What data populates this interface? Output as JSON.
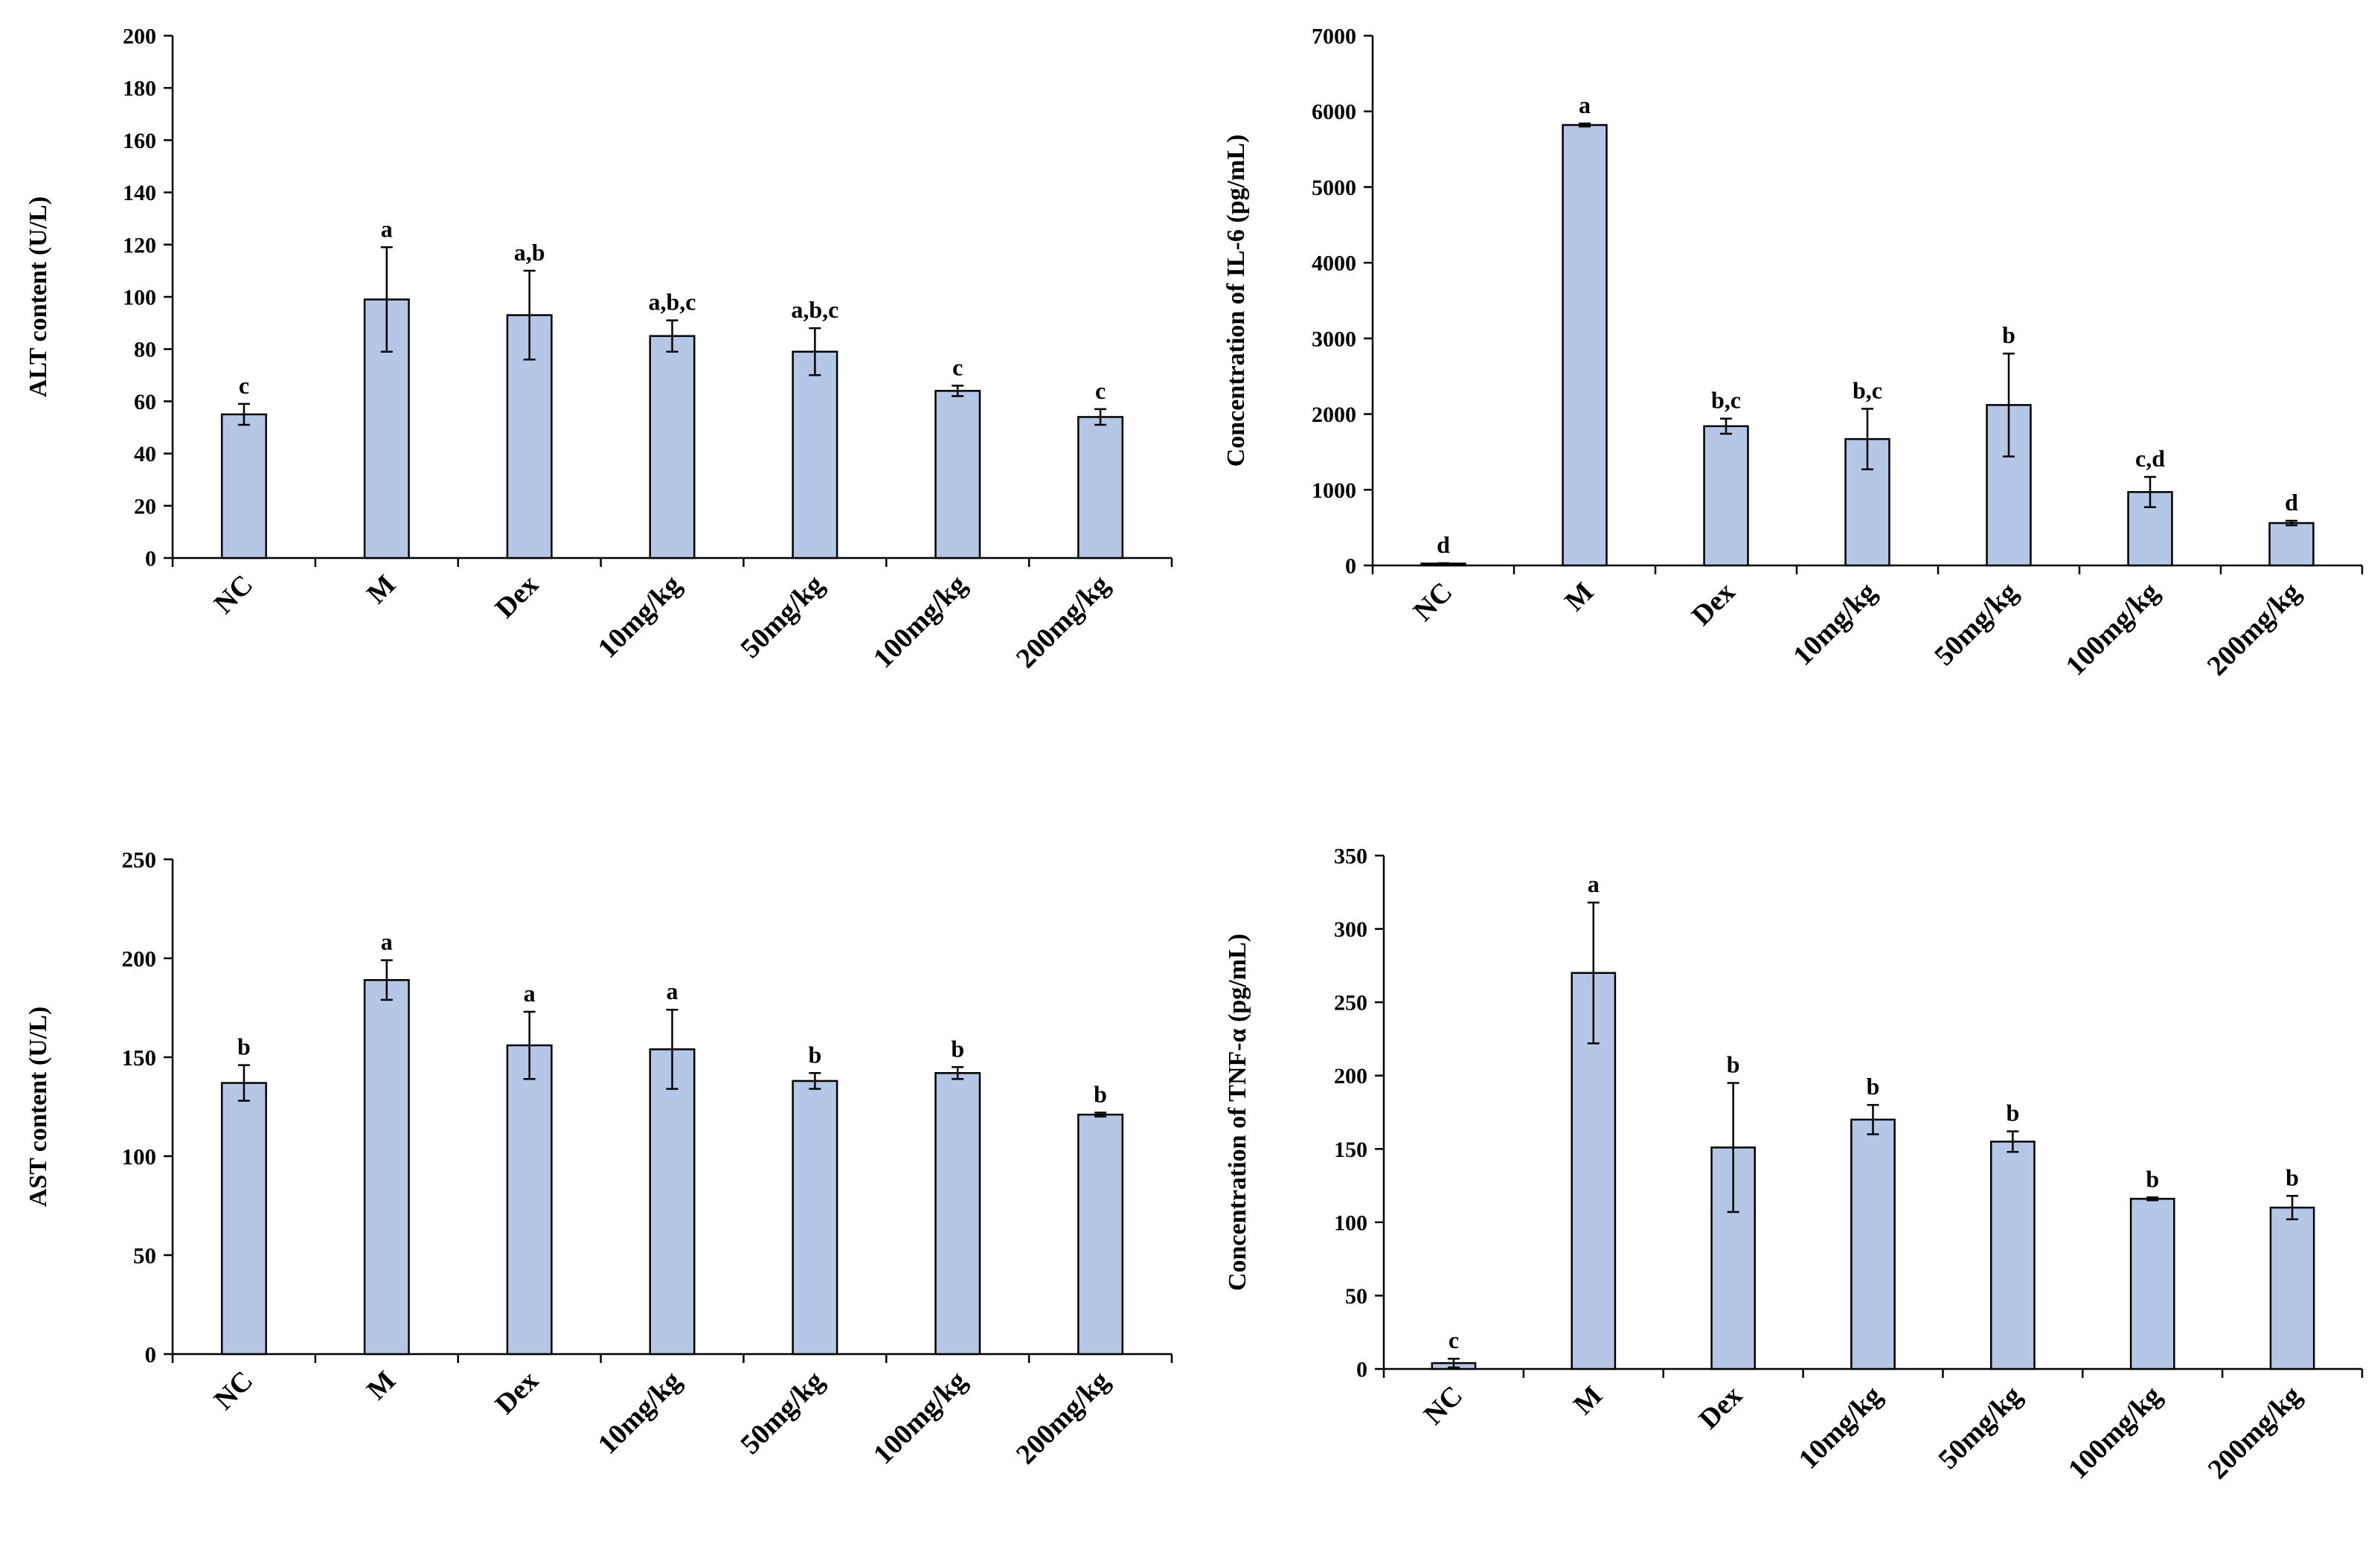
{
  "chart_data": [
    {
      "type": "bar",
      "ylabel": "ALT content (U/L)",
      "categories": [
        "NC",
        "M",
        "Dex",
        "10mg/kg",
        "50mg/kg",
        "100mg/kg",
        "200mg/kg"
      ],
      "values": [
        55,
        99,
        93,
        85,
        79,
        64,
        54
      ],
      "errors": [
        4,
        20,
        17,
        6,
        9,
        2,
        3
      ],
      "labels": [
        "c",
        "a",
        "a,b",
        "a,b,c",
        "a,b,c",
        "c",
        "c"
      ],
      "ylim": [
        0,
        200
      ],
      "yticks": [
        0,
        20,
        40,
        60,
        80,
        100,
        120,
        140,
        160,
        180,
        200
      ],
      "bar_color": "#b4c7e7"
    },
    {
      "type": "bar",
      "ylabel": "Concentration of  IL-6 (pg/mL)",
      "categories": [
        "NC",
        "M",
        "Dex",
        "10mg/kg",
        "50mg/kg",
        "100mg/kg",
        "200mg/kg"
      ],
      "values": [
        25,
        5820,
        1840,
        1670,
        2120,
        970,
        560
      ],
      "errors": [
        5,
        20,
        100,
        400,
        680,
        200,
        30
      ],
      "labels": [
        "d",
        "a",
        "b,c",
        "b,c",
        "b",
        "c,d",
        "d"
      ],
      "ylim": [
        0,
        7000
      ],
      "yticks": [
        0,
        1000,
        2000,
        3000,
        4000,
        5000,
        6000,
        7000
      ],
      "bar_color": "#b4c7e7"
    },
    {
      "type": "bar",
      "ylabel": "AST content (U/L)",
      "categories": [
        "NC",
        "M",
        "Dex",
        "10mg/kg",
        "50mg/kg",
        "100mg/kg",
        "200mg/kg"
      ],
      "values": [
        137,
        189,
        156,
        154,
        138,
        142,
        121
      ],
      "errors": [
        9,
        10,
        17,
        20,
        4,
        3,
        1
      ],
      "labels": [
        "b",
        "a",
        "a",
        "a",
        "b",
        "b",
        "b"
      ],
      "ylim": [
        0,
        250
      ],
      "yticks": [
        0,
        50,
        100,
        150,
        200,
        250
      ],
      "bar_color": "#b4c7e7"
    },
    {
      "type": "bar",
      "ylabel": "Concentration of  TNF-α (pg/mL)",
      "categories": [
        "NC",
        "M",
        "Dex",
        "10mg/kg",
        "50mg/kg",
        "100mg/kg",
        "200mg/kg"
      ],
      "values": [
        4,
        270,
        151,
        170,
        155,
        116,
        110
      ],
      "errors": [
        3,
        48,
        44,
        10,
        7,
        1,
        8
      ],
      "labels": [
        "c",
        "a",
        "b",
        "b",
        "b",
        "b",
        "b"
      ],
      "ylim": [
        0,
        350
      ],
      "yticks": [
        0,
        50,
        100,
        150,
        200,
        250,
        300,
        350
      ],
      "bar_color": "#b4c7e7"
    }
  ]
}
